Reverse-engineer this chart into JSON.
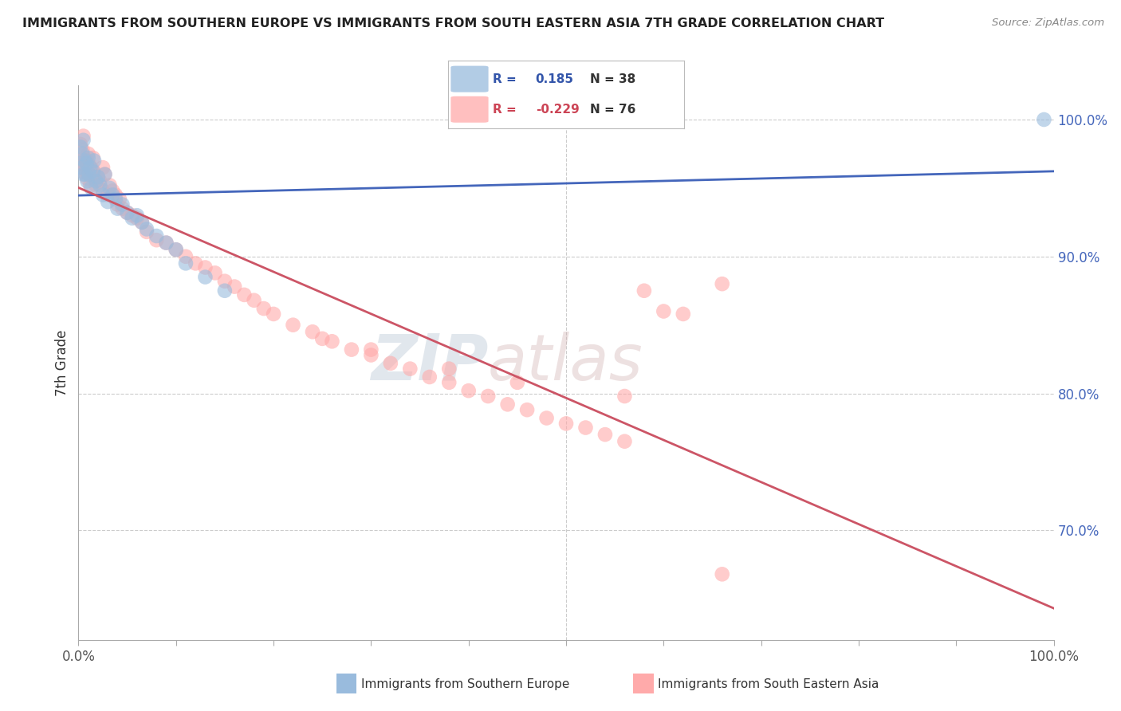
{
  "title": "IMMIGRANTS FROM SOUTHERN EUROPE VS IMMIGRANTS FROM SOUTH EASTERN ASIA 7TH GRADE CORRELATION CHART",
  "source": "Source: ZipAtlas.com",
  "ylabel": "7th Grade",
  "right_yticks": [
    "100.0%",
    "90.0%",
    "80.0%",
    "70.0%"
  ],
  "right_ytick_vals": [
    1.0,
    0.9,
    0.8,
    0.7
  ],
  "legend_label_blue": "Immigrants from Southern Europe",
  "legend_label_pink": "Immigrants from South Eastern Asia",
  "blue_color": "#99BBDD",
  "pink_color": "#FFAAAA",
  "blue_line_color": "#4466BB",
  "pink_line_color": "#CC5566",
  "blue_r": 0.185,
  "blue_n": 38,
  "pink_r": -0.229,
  "pink_n": 76,
  "blue_r_str": "0.185",
  "pink_r_str": "-0.229",
  "watermark_zip": "ZIP",
  "watermark_atlas": "atlas",
  "blue_scatter_x": [
    0.002,
    0.003,
    0.004,
    0.005,
    0.005,
    0.006,
    0.007,
    0.008,
    0.009,
    0.01,
    0.011,
    0.012,
    0.013,
    0.015,
    0.016,
    0.018,
    0.02,
    0.022,
    0.025,
    0.027,
    0.03,
    0.032,
    0.035,
    0.038,
    0.04,
    0.045,
    0.05,
    0.055,
    0.06,
    0.065,
    0.07,
    0.08,
    0.09,
    0.1,
    0.11,
    0.13,
    0.15,
    0.99
  ],
  "blue_scatter_y": [
    0.98,
    0.965,
    0.975,
    0.96,
    0.985,
    0.97,
    0.96,
    0.968,
    0.955,
    0.972,
    0.96,
    0.965,
    0.95,
    0.962,
    0.97,
    0.955,
    0.958,
    0.952,
    0.945,
    0.96,
    0.94,
    0.95,
    0.945,
    0.942,
    0.935,
    0.938,
    0.932,
    0.928,
    0.93,
    0.925,
    0.92,
    0.915,
    0.91,
    0.905,
    0.895,
    0.885,
    0.875,
    1.0
  ],
  "pink_scatter_x": [
    0.002,
    0.003,
    0.004,
    0.005,
    0.005,
    0.006,
    0.007,
    0.008,
    0.009,
    0.01,
    0.01,
    0.011,
    0.012,
    0.013,
    0.015,
    0.015,
    0.016,
    0.018,
    0.02,
    0.022,
    0.025,
    0.025,
    0.027,
    0.03,
    0.032,
    0.035,
    0.038,
    0.04,
    0.042,
    0.045,
    0.05,
    0.055,
    0.06,
    0.065,
    0.07,
    0.08,
    0.09,
    0.1,
    0.11,
    0.12,
    0.13,
    0.14,
    0.15,
    0.16,
    0.17,
    0.18,
    0.19,
    0.2,
    0.22,
    0.24,
    0.26,
    0.28,
    0.3,
    0.32,
    0.34,
    0.36,
    0.38,
    0.4,
    0.42,
    0.44,
    0.46,
    0.48,
    0.5,
    0.52,
    0.54,
    0.56,
    0.58,
    0.6,
    0.62,
    0.25,
    0.3,
    0.38,
    0.45,
    0.56,
    0.66,
    0.66
  ],
  "pink_scatter_y": [
    0.982,
    0.968,
    0.978,
    0.962,
    0.988,
    0.972,
    0.963,
    0.97,
    0.957,
    0.975,
    0.96,
    0.967,
    0.952,
    0.964,
    0.963,
    0.972,
    0.958,
    0.952,
    0.958,
    0.955,
    0.948,
    0.965,
    0.96,
    0.945,
    0.952,
    0.948,
    0.945,
    0.938,
    0.942,
    0.935,
    0.932,
    0.93,
    0.928,
    0.925,
    0.918,
    0.912,
    0.91,
    0.905,
    0.9,
    0.895,
    0.892,
    0.888,
    0.882,
    0.878,
    0.872,
    0.868,
    0.862,
    0.858,
    0.85,
    0.845,
    0.838,
    0.832,
    0.828,
    0.822,
    0.818,
    0.812,
    0.808,
    0.802,
    0.798,
    0.792,
    0.788,
    0.782,
    0.778,
    0.775,
    0.77,
    0.765,
    0.875,
    0.86,
    0.858,
    0.84,
    0.832,
    0.818,
    0.808,
    0.798,
    0.88,
    0.668
  ]
}
